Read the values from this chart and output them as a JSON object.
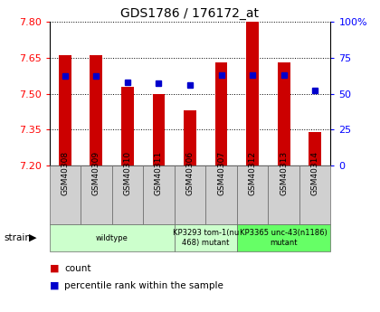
{
  "title": "GDS1786 / 176172_at",
  "samples": [
    "GSM40308",
    "GSM40309",
    "GSM40310",
    "GSM40311",
    "GSM40306",
    "GSM40307",
    "GSM40312",
    "GSM40313",
    "GSM40314"
  ],
  "count_values": [
    7.66,
    7.66,
    7.53,
    7.5,
    7.43,
    7.63,
    7.8,
    7.63,
    7.34
  ],
  "percentile_values": [
    62,
    62,
    58,
    57,
    56,
    63,
    63,
    63,
    52
  ],
  "ylim_left": [
    7.2,
    7.8
  ],
  "ylim_right": [
    0,
    100
  ],
  "yticks_left": [
    7.2,
    7.35,
    7.5,
    7.65,
    7.8
  ],
  "yticks_right": [
    0,
    25,
    50,
    75,
    100
  ],
  "ytick_labels_right": [
    "0",
    "25",
    "50",
    "75",
    "100%"
  ],
  "bar_color": "#cc0000",
  "dot_color": "#0000cc",
  "bg_color": "#ffffff",
  "strain_groups": [
    {
      "label": "wildtype",
      "span": [
        0,
        4
      ],
      "color": "#ccffcc"
    },
    {
      "label": "KP3293 tom-1(nu\n468) mutant",
      "span": [
        4,
        6
      ],
      "color": "#ccffcc"
    },
    {
      "label": "KP3365 unc-43(n1186)\nmutant",
      "span": [
        6,
        9
      ],
      "color": "#66ff66"
    }
  ],
  "bar_width": 0.4,
  "base_value": 7.2
}
